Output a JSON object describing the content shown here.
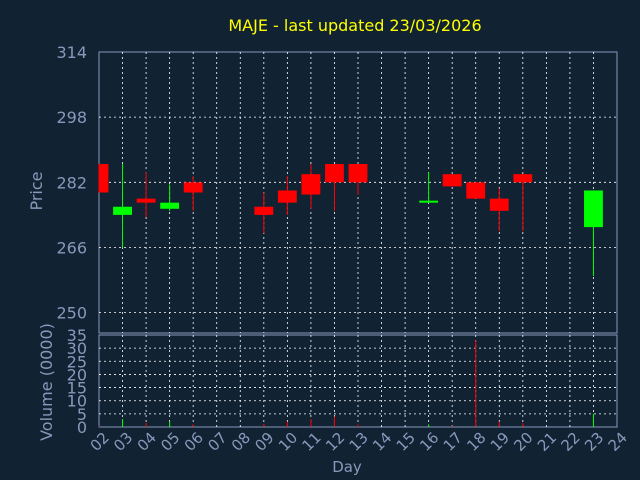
{
  "chart_data": {
    "type": "candlestick",
    "title": "MAJE - last updated 23/03/2026",
    "xlabel": "Day",
    "price_panel": {
      "ylabel": "Price",
      "ylim": [
        245,
        314
      ],
      "yticks": [
        250,
        266,
        282,
        298,
        314
      ],
      "grid": true
    },
    "volume_panel": {
      "ylabel": "Volume (0000)",
      "ylim": [
        0,
        35
      ],
      "yticks": [
        0,
        5,
        10,
        15,
        20,
        25,
        30,
        35
      ],
      "grid": true
    },
    "x_ticks": [
      "02",
      "03",
      "04",
      "05",
      "06",
      "07",
      "08",
      "09",
      "10",
      "11",
      "12",
      "13",
      "14",
      "15",
      "16",
      "17",
      "18",
      "19",
      "20",
      "21",
      "22",
      "23",
      "24"
    ],
    "colors": {
      "background": "#112233",
      "title": "#ffff00",
      "axis_text": "#8899bb",
      "axis_line": "#8899bb",
      "grid": "#ffffff",
      "up": "#00ff00",
      "down": "#ff0000"
    },
    "candles": [
      {
        "day": "02",
        "open": 286.5,
        "close": 279.5,
        "high": 286.5,
        "low": 279.5,
        "volume": 0.3
      },
      {
        "day": "03",
        "open": 274.0,
        "close": 276.0,
        "high": 286.5,
        "low": 266.0,
        "volume": 3.0
      },
      {
        "day": "04",
        "open": 278.0,
        "close": 277.0,
        "high": 284.5,
        "low": 273.5,
        "volume": 1.5
      },
      {
        "day": "05",
        "open": 275.5,
        "close": 277.0,
        "high": 281.5,
        "low": 275.0,
        "volume": 2.0
      },
      {
        "day": "06",
        "open": 282.0,
        "close": 279.5,
        "high": 283.5,
        "low": 275.0,
        "volume": 1.0
      },
      {
        "day": "09",
        "open": 276.0,
        "close": 274.0,
        "high": 279.5,
        "low": 269.5,
        "volume": 1.2
      },
      {
        "day": "10",
        "open": 280.0,
        "close": 277.0,
        "high": 283.5,
        "low": 274.0,
        "volume": 2.0
      },
      {
        "day": "11",
        "open": 284.0,
        "close": 279.0,
        "high": 286.5,
        "low": 275.5,
        "volume": 3.0
      },
      {
        "day": "12",
        "open": 286.5,
        "close": 282.0,
        "high": 286.5,
        "low": 275.0,
        "volume": 4.0
      },
      {
        "day": "13",
        "open": 286.5,
        "close": 282.0,
        "high": 286.5,
        "low": 279.0,
        "volume": 1.0
      },
      {
        "day": "16",
        "open": 277.0,
        "close": 277.5,
        "high": 284.5,
        "low": 277.0,
        "volume": 1.0
      },
      {
        "day": "17",
        "open": 284.0,
        "close": 281.0,
        "high": 284.0,
        "low": 281.0,
        "volume": 0.5
      },
      {
        "day": "18",
        "open": 282.0,
        "close": 278.0,
        "high": 282.0,
        "low": 278.0,
        "volume": 33.0
      },
      {
        "day": "19",
        "open": 278.0,
        "close": 275.0,
        "high": 280.5,
        "low": 270.0,
        "volume": 2.0
      },
      {
        "day": "20",
        "open": 284.0,
        "close": 282.0,
        "high": 284.0,
        "low": 270.0,
        "volume": 1.5
      },
      {
        "day": "23",
        "open": 271.0,
        "close": 280.0,
        "high": 280.0,
        "low": 259.0,
        "volume": 5.0
      }
    ]
  }
}
